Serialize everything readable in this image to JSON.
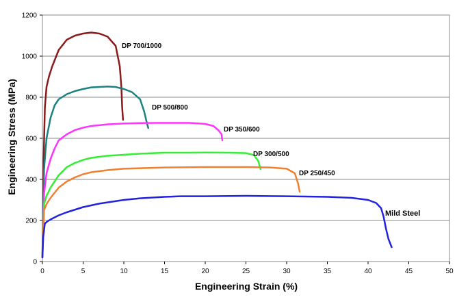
{
  "chart_data": {
    "type": "line",
    "xlabel": "Engineering Strain (%)",
    "ylabel": "Engineering Stress (MPa)",
    "xlim": [
      0,
      50
    ],
    "ylim": [
      0,
      1200
    ],
    "xticks": [
      "0",
      "5",
      "10",
      "15",
      "20",
      "25",
      "30",
      "35",
      "40",
      "45",
      "50"
    ],
    "yticks": [
      "0",
      "200",
      "400",
      "600",
      "800",
      "1000",
      "1200"
    ],
    "grid": "horizontal",
    "series": [
      {
        "name": "DP 700/1000",
        "color": "#8b1a1a",
        "points": [
          [
            0,
            20
          ],
          [
            0.15,
            500
          ],
          [
            0.3,
            750
          ],
          [
            0.5,
            850
          ],
          [
            0.8,
            900
          ],
          [
            1.2,
            950
          ],
          [
            2,
            1030
          ],
          [
            3,
            1080
          ],
          [
            4,
            1100
          ],
          [
            5,
            1110
          ],
          [
            6,
            1115
          ],
          [
            7,
            1110
          ],
          [
            8,
            1095
          ],
          [
            9,
            1050
          ],
          [
            9.5,
            950
          ],
          [
            9.7,
            850
          ],
          [
            9.8,
            750
          ],
          [
            9.9,
            690
          ]
        ]
      },
      {
        "name": "DP 500/800",
        "color": "#1a8080",
        "points": [
          [
            0,
            20
          ],
          [
            0.2,
            450
          ],
          [
            0.5,
            600
          ],
          [
            1,
            700
          ],
          [
            1.5,
            760
          ],
          [
            2,
            790
          ],
          [
            3,
            815
          ],
          [
            4,
            830
          ],
          [
            5,
            840
          ],
          [
            6,
            848
          ],
          [
            7,
            850
          ],
          [
            8,
            852
          ],
          [
            9,
            850
          ],
          [
            10,
            840
          ],
          [
            11,
            825
          ],
          [
            12,
            790
          ],
          [
            12.5,
            730
          ],
          [
            12.8,
            680
          ],
          [
            13,
            650
          ]
        ]
      },
      {
        "name": "DP 350/600",
        "color": "#ff33ff",
        "points": [
          [
            0,
            20
          ],
          [
            0.2,
            330
          ],
          [
            0.5,
            430
          ],
          [
            1,
            500
          ],
          [
            1.5,
            550
          ],
          [
            2,
            590
          ],
          [
            3,
            620
          ],
          [
            4,
            640
          ],
          [
            5,
            652
          ],
          [
            6,
            660
          ],
          [
            8,
            668
          ],
          [
            10,
            672
          ],
          [
            12,
            674
          ],
          [
            14,
            675
          ],
          [
            16,
            675
          ],
          [
            18,
            675
          ],
          [
            19,
            673
          ],
          [
            20,
            670
          ],
          [
            21,
            660
          ],
          [
            21.6,
            640
          ],
          [
            22,
            620
          ],
          [
            22.1,
            590
          ]
        ]
      },
      {
        "name": "DP 300/500",
        "color": "#33ee33",
        "points": [
          [
            0,
            20
          ],
          [
            0.2,
            280
          ],
          [
            0.5,
            320
          ],
          [
            1,
            360
          ],
          [
            2,
            420
          ],
          [
            3,
            460
          ],
          [
            4,
            480
          ],
          [
            5,
            495
          ],
          [
            6,
            505
          ],
          [
            8,
            515
          ],
          [
            10,
            520
          ],
          [
            12,
            525
          ],
          [
            15,
            530
          ],
          [
            18,
            530
          ],
          [
            20,
            531
          ],
          [
            23,
            530
          ],
          [
            25,
            528
          ],
          [
            26,
            518
          ],
          [
            26.5,
            490
          ],
          [
            26.8,
            450
          ]
        ]
      },
      {
        "name": "DP 250/450",
        "color": "#f08030",
        "points": [
          [
            0,
            20
          ],
          [
            0.2,
            250
          ],
          [
            0.5,
            280
          ],
          [
            1,
            310
          ],
          [
            2,
            360
          ],
          [
            3,
            390
          ],
          [
            4,
            410
          ],
          [
            5,
            425
          ],
          [
            6,
            435
          ],
          [
            8,
            445
          ],
          [
            10,
            452
          ],
          [
            15,
            458
          ],
          [
            20,
            460
          ],
          [
            25,
            460
          ],
          [
            28,
            458
          ],
          [
            30,
            452
          ],
          [
            31,
            430
          ],
          [
            31.4,
            380
          ],
          [
            31.6,
            340
          ]
        ]
      },
      {
        "name": "Mild Steel",
        "color": "#2222dd",
        "points": [
          [
            0,
            20
          ],
          [
            0.1,
            120
          ],
          [
            0.3,
            185
          ],
          [
            0.6,
            195
          ],
          [
            1,
            205
          ],
          [
            2,
            225
          ],
          [
            3,
            240
          ],
          [
            5,
            265
          ],
          [
            7,
            282
          ],
          [
            10,
            300
          ],
          [
            12,
            308
          ],
          [
            15,
            315
          ],
          [
            17,
            318
          ],
          [
            20,
            318
          ],
          [
            25,
            320
          ],
          [
            30,
            318
          ],
          [
            35,
            315
          ],
          [
            38,
            310
          ],
          [
            40,
            300
          ],
          [
            41,
            285
          ],
          [
            41.6,
            260
          ],
          [
            41.9,
            220
          ],
          [
            42.2,
            160
          ],
          [
            42.5,
            110
          ],
          [
            42.9,
            70
          ]
        ]
      }
    ]
  }
}
